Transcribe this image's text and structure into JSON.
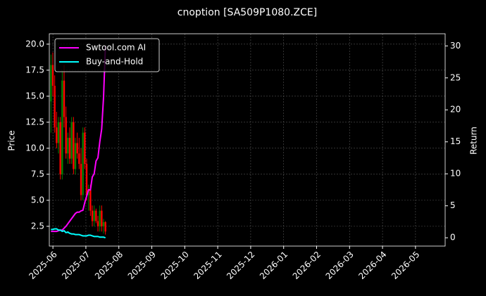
{
  "chart_data": {
    "type": "candlestick_lines",
    "title": "cnoption [SA509P1080.ZCE]",
    "ylabel": "Price",
    "y2label": "Return",
    "x": [
      -0.06,
      -0.003,
      0.054,
      0.111,
      0.168,
      0.225,
      0.282,
      0.339,
      0.396,
      0.453,
      0.51,
      0.567,
      0.624,
      0.681,
      0.738,
      0.795,
      0.852,
      0.909,
      0.966,
      1.023,
      1.08,
      1.137,
      1.194,
      1.251,
      1.308,
      1.365,
      1.422,
      1.479,
      1.536,
      1.593
    ],
    "open": [
      14.5,
      18.0,
      16.0,
      12.0,
      10.5,
      12.5,
      7.5,
      16.5,
      13.0,
      9.5,
      11.0,
      9.0,
      12.5,
      8.0,
      10.5,
      9.5,
      8.5,
      5.5,
      11.5,
      8.5,
      5.5,
      6.0,
      4.0,
      3.0,
      4.0,
      3.0,
      2.5,
      4.0,
      2.5,
      2.9
    ],
    "high": [
      19.0,
      19.2,
      17.0,
      13.5,
      13.0,
      13.0,
      17.5,
      18.0,
      14.0,
      11.5,
      12.0,
      13.0,
      13.0,
      11.0,
      11.5,
      11.0,
      10.0,
      12.0,
      12.0,
      9.0,
      6.5,
      6.5,
      4.5,
      4.5,
      4.2,
      3.5,
      4.5,
      4.5,
      3.2,
      3.0
    ],
    "low": [
      11.5,
      15.0,
      11.5,
      10.0,
      9.5,
      7.0,
      7.0,
      12.0,
      9.0,
      8.5,
      8.5,
      8.5,
      7.5,
      7.5,
      9.0,
      8.0,
      5.0,
      5.0,
      8.0,
      5.0,
      4.0,
      3.5,
      2.5,
      2.5,
      2.8,
      2.0,
      2.0,
      2.0,
      1.8,
      1.7
    ],
    "close": [
      18.0,
      16.0,
      12.0,
      10.5,
      12.5,
      7.5,
      16.5,
      13.0,
      9.5,
      11.0,
      9.0,
      12.5,
      8.0,
      10.5,
      9.5,
      8.5,
      5.5,
      11.5,
      8.5,
      5.5,
      6.0,
      4.0,
      3.0,
      4.0,
      3.0,
      2.5,
      4.0,
      2.5,
      2.9,
      2.0
    ],
    "up_color": "#008000",
    "down_color": "#ff0000",
    "series": [
      {
        "name": "Swtool.com AI",
        "color": "#ff00ff",
        "axis": "y2",
        "values": [
          1.0,
          1.0,
          1.0,
          1.0,
          1.1,
          1.2,
          1.2,
          1.5,
          1.8,
          2.2,
          2.6,
          3.0,
          3.4,
          3.8,
          4.0,
          4.0,
          4.2,
          4.3,
          5.5,
          6.5,
          7.5,
          7.5,
          9.5,
          10,
          12,
          12.5,
          15,
          17,
          22,
          30
        ]
      },
      {
        "name": "Buy-and-Hold",
        "color": "#00ffff",
        "axis": "y2",
        "values": [
          1.3,
          1.3,
          1.4,
          1.4,
          1.2,
          1.2,
          1.0,
          1.1,
          0.8,
          0.9,
          0.7,
          0.6,
          0.6,
          0.5,
          0.5,
          0.5,
          0.4,
          0.3,
          0.3,
          0.3,
          0.4,
          0.4,
          0.3,
          0.2,
          0.2,
          0.2,
          0.1,
          0.1,
          0.1,
          0.0
        ]
      }
    ],
    "xlim": [
      -0.11,
      11.9
    ],
    "xticks": [
      {
        "value": 0,
        "label": "2025-06"
      },
      {
        "value": 1,
        "label": "2025-07"
      },
      {
        "value": 2,
        "label": "2025-08"
      },
      {
        "value": 3,
        "label": "2025-09"
      },
      {
        "value": 4,
        "label": "2025-10"
      },
      {
        "value": 5,
        "label": "2025-11"
      },
      {
        "value": 6,
        "label": "2025-12"
      },
      {
        "value": 7,
        "label": "2026-01"
      },
      {
        "value": 8,
        "label": "2026-02"
      },
      {
        "value": 9,
        "label": "2026-03"
      },
      {
        "value": 10,
        "label": "2026-04"
      },
      {
        "value": 11,
        "label": "2026-05"
      }
    ],
    "ylim": [
      0.6,
      21.0
    ],
    "yticks": [
      {
        "value": 2.5,
        "label": "2.5"
      },
      {
        "value": 5,
        "label": "5.0"
      },
      {
        "value": 7.5,
        "label": "7.5"
      },
      {
        "value": 10,
        "label": "10.0"
      },
      {
        "value": 12.5,
        "label": "12.5"
      },
      {
        "value": 15,
        "label": "15.0"
      },
      {
        "value": 17.5,
        "label": "17.5"
      },
      {
        "value": 20,
        "label": "20.0"
      }
    ],
    "y2lim": [
      -1.3,
      31.9
    ],
    "y2ticks": [
      0,
      5,
      10,
      15,
      20,
      25,
      30
    ],
    "grid": true,
    "legend": "upper left"
  }
}
